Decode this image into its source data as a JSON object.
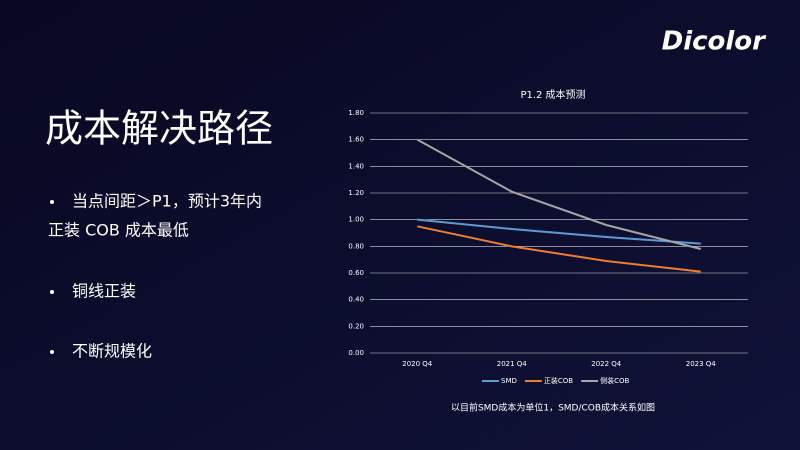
{
  "logo": "Dicolor",
  "slide_title": "成本解决路径",
  "bullets": [
    [
      "当点间距＞P1，预计3年内",
      "正装 COB 成本最低"
    ],
    [
      "铜线正装"
    ],
    [
      "不断规模化"
    ]
  ],
  "chart_data": {
    "type": "line",
    "title": "P1.2 成本预测",
    "categories": [
      "2020 Q4",
      "2021 Q4",
      "2022 Q4",
      "2023 Q4"
    ],
    "series": [
      {
        "name": "SMD",
        "color": "#5b9bd5",
        "values": [
          1.0,
          0.93,
          0.87,
          0.82
        ]
      },
      {
        "name": "正装COB",
        "color": "#ed7d31",
        "values": [
          0.95,
          0.8,
          0.69,
          0.61
        ]
      },
      {
        "name": "侧装COB",
        "color": "#a5a5a5",
        "values": [
          1.6,
          1.21,
          0.96,
          0.78
        ]
      }
    ],
    "ylim": [
      0,
      1.8
    ],
    "yticks": [
      {
        "value": 0,
        "label": "0.00"
      },
      {
        "value": 0.2,
        "label": "0.20"
      },
      {
        "value": 0.4,
        "label": "0.40"
      },
      {
        "value": 0.6,
        "label": "0.60"
      },
      {
        "value": 0.8,
        "label": "0.80"
      },
      {
        "value": 1.0,
        "label": "1.00"
      },
      {
        "value": 1.2,
        "label": "1.20"
      },
      {
        "value": 1.4,
        "label": "1.40"
      },
      {
        "value": 1.6,
        "label": "1.60"
      },
      {
        "value": 1.8,
        "label": "1.80"
      }
    ],
    "grid": true,
    "legend": "bottom",
    "caption": "以目前SMD成本为单位1，SMD/COB成本关系如图"
  }
}
